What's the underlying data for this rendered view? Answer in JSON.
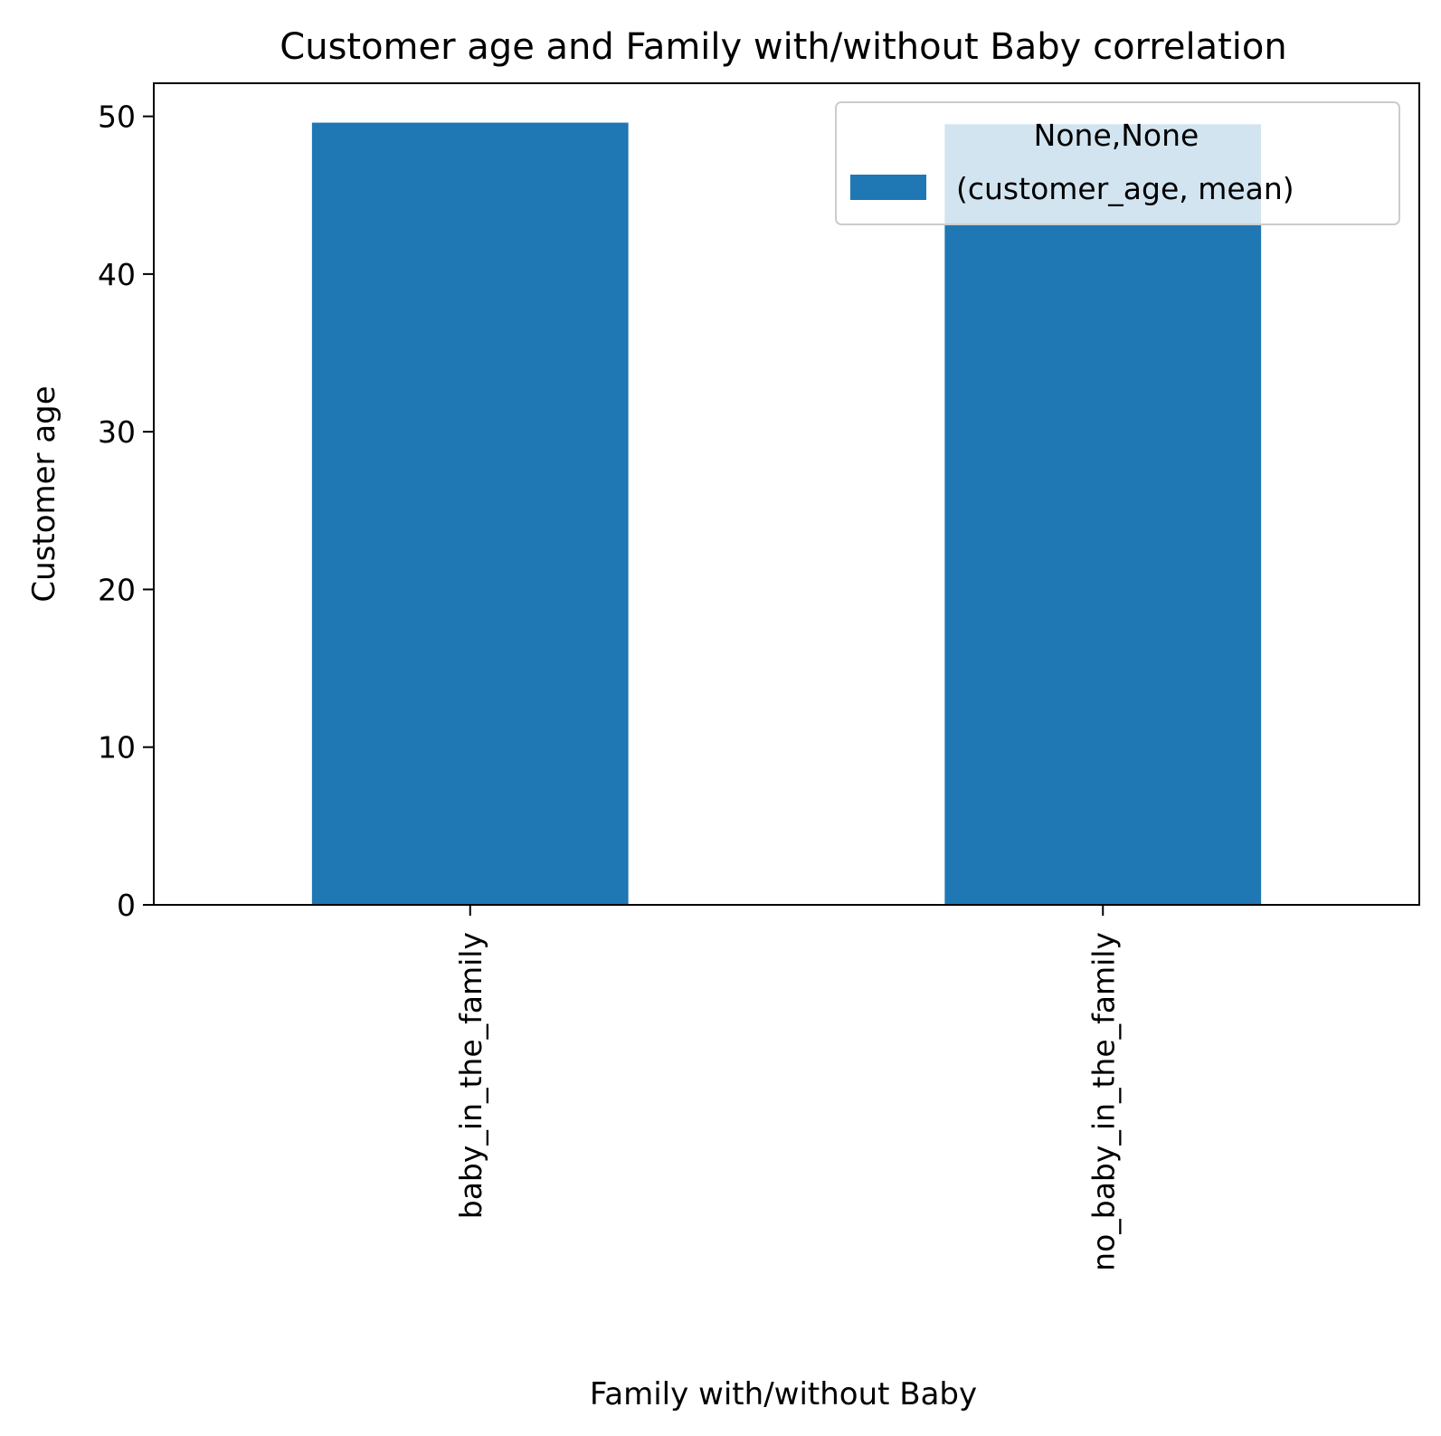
{
  "chart_data": {
    "type": "bar",
    "title": "Customer age and Family with/without Baby correlation",
    "xlabel": "Family with/without Baby",
    "ylabel": "Customer age",
    "categories": [
      "baby_in_the_family",
      "no_baby_in_the_family"
    ],
    "series": [
      {
        "name": "(customer_age, mean)",
        "values": [
          49.6,
          49.5
        ]
      }
    ],
    "ylim": [
      0,
      52.1
    ],
    "yticks": [
      "0",
      "10",
      "20",
      "30",
      "40",
      "50"
    ],
    "legend": {
      "title": "None,None",
      "placement": "top-right"
    },
    "grid": false,
    "colors": {
      "bar": "#1f77b4"
    }
  }
}
